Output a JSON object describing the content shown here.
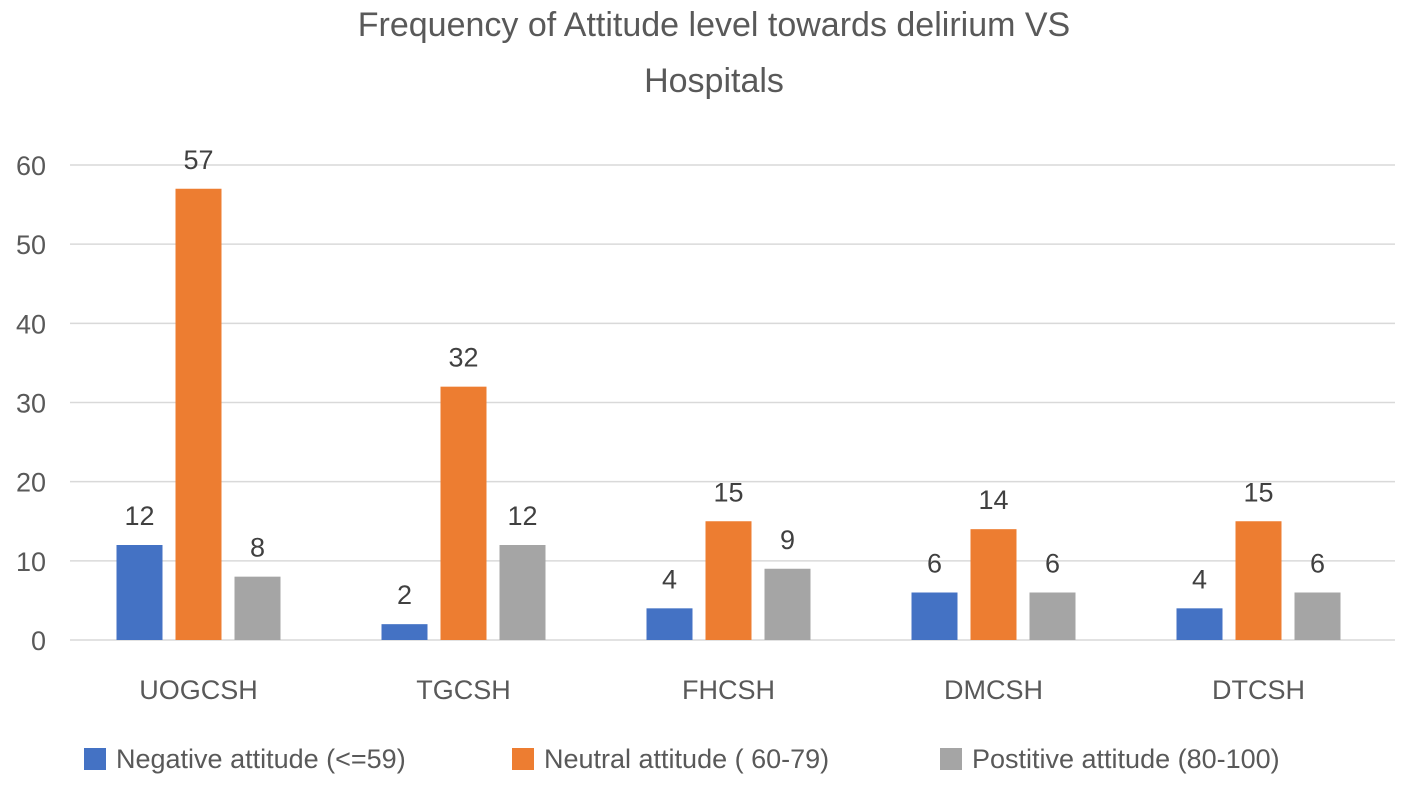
{
  "chart_data": {
    "type": "bar",
    "title_lines": [
      "Frequency of Attitude level towards delirium VS",
      "Hospitals"
    ],
    "categories": [
      "UOGCSH",
      "TGCSH",
      "FHCSH",
      "DMCSH",
      "DTCSH"
    ],
    "series": [
      {
        "name": "Negative attitude (<=59)",
        "color": "#4472C4",
        "values": [
          12,
          2,
          4,
          6,
          4
        ]
      },
      {
        "name": "Neutral attitude ( 60-79)",
        "color": "#ED7D31",
        "values": [
          57,
          32,
          15,
          14,
          15
        ]
      },
      {
        "name": "Postitive attitude (80-100)",
        "color": "#A5A5A5",
        "values": [
          8,
          12,
          9,
          6,
          6
        ]
      }
    ],
    "ylim": [
      0,
      60
    ],
    "yticks": [
      0,
      10,
      20,
      30,
      40,
      50,
      60
    ],
    "grid": true,
    "legend_position": "bottom",
    "xlabel": "",
    "ylabel": ""
  }
}
